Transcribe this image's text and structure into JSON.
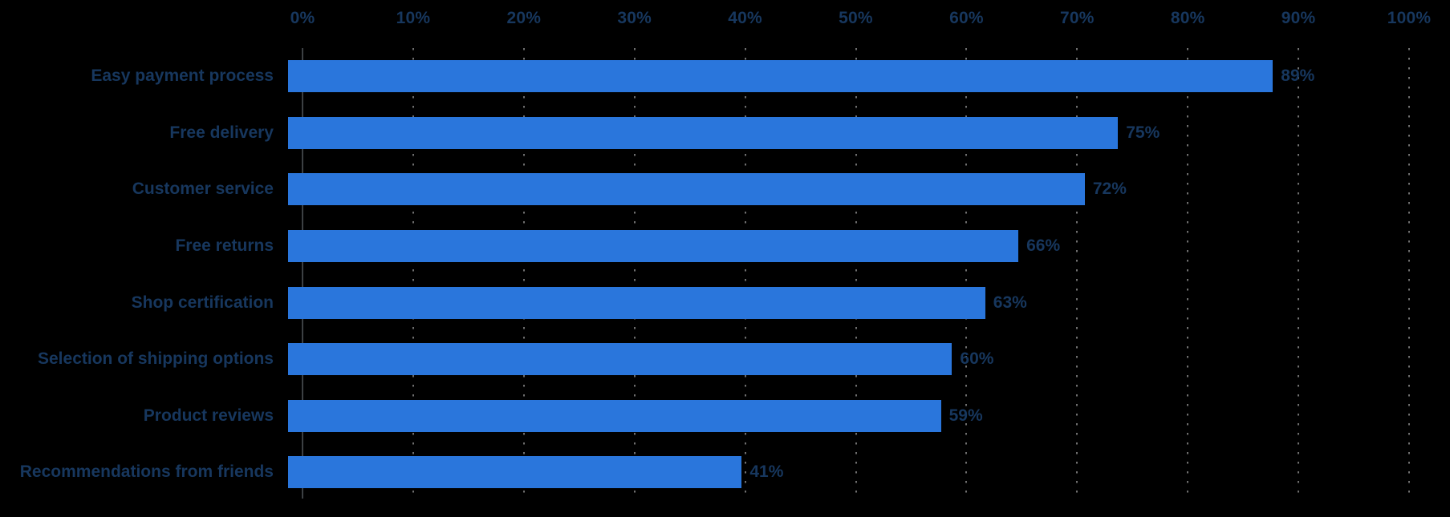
{
  "chart_data": {
    "type": "bar",
    "orientation": "horizontal",
    "title": "",
    "xlabel": "",
    "ylabel": "",
    "categories": [
      "Easy payment process",
      "Free delivery",
      "Customer service",
      "Free returns",
      "Shop certification",
      "Selection of shipping options",
      "Product reviews",
      "Recommendations from friends"
    ],
    "values": [
      89,
      75,
      72,
      66,
      63,
      60,
      59,
      41
    ],
    "value_labels": [
      "89%",
      "75%",
      "72%",
      "66%",
      "63%",
      "60%",
      "59%",
      "41%"
    ],
    "x_ticks": [
      "0%",
      "10%",
      "20%",
      "30%",
      "40%",
      "50%",
      "60%",
      "70%",
      "80%",
      "90%",
      "100%"
    ],
    "x_tick_values": [
      0,
      10,
      20,
      30,
      40,
      50,
      60,
      70,
      80,
      90,
      100
    ],
    "xlim": [
      0,
      100
    ],
    "grid": "vertical dotted gridlines at each 10% tick",
    "axis_line": "solid vertical line at 0%",
    "legend": "none",
    "colors": {
      "background": "#000000",
      "bar_fill": "#2a76dc",
      "label_text": "#17375e",
      "gridline_dots": "#6f6f6f",
      "axis_line": "#3c4043"
    }
  }
}
